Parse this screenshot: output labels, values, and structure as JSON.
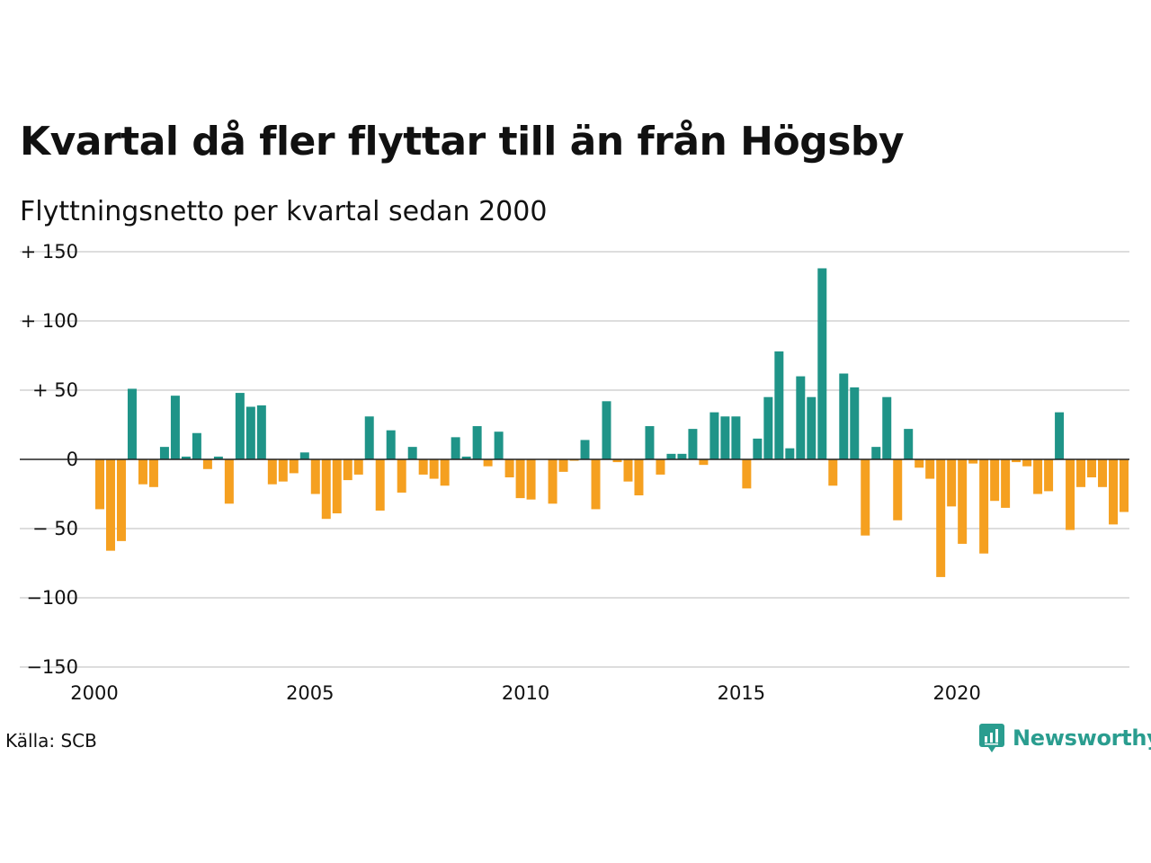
{
  "title": "Kvartal då fler flyttar till än från Högsby",
  "subtitle": "Flyttningsnetto per kvartal sedan 2000",
  "source": "Källa: SCB",
  "brand": {
    "name": "Newsworthy",
    "icon": "newsworthy-logo-icon"
  },
  "colors": {
    "positive": "#1f9488",
    "negative": "#f5a020",
    "grid": "#dddddd",
    "zero_line": "#222222"
  },
  "chart_data": {
    "type": "bar",
    "title": "Kvartal då fler flyttar till än från Högsby",
    "subtitle": "Flyttningsnetto per kvartal sedan 2000",
    "xlabel": "",
    "ylabel": "",
    "start": "2000 Q1",
    "quarters_per_year": 4,
    "ylim": [
      -150,
      150
    ],
    "xlim": [
      2000,
      2024
    ],
    "y_ticks": [
      150,
      100,
      50,
      0,
      -50,
      -100,
      -150
    ],
    "y_tick_labels": [
      "+ 150",
      "+ 100",
      "+  50",
      "0",
      "− 50",
      "−100",
      "−150"
    ],
    "x_ticks": [
      2000,
      2005,
      2010,
      2015,
      2020
    ],
    "x_tick_labels": [
      "2000",
      "2005",
      "2010",
      "2015",
      "2020"
    ],
    "grid": true,
    "legend": "none",
    "values": [
      -36,
      -66,
      -59,
      51,
      -18,
      -20,
      9,
      46,
      2,
      19,
      -7,
      2,
      -32,
      48,
      38,
      39,
      -18,
      -16,
      -10,
      5,
      -25,
      -43,
      -39,
      -15,
      -11,
      31,
      -37,
      21,
      -24,
      9,
      -11,
      -14,
      -19,
      16,
      2,
      24,
      -5,
      20,
      -13,
      -28,
      -29,
      0,
      -32,
      -9,
      -1,
      14,
      -36,
      42,
      -2,
      -16,
      -26,
      24,
      -11,
      4,
      4,
      22,
      -4,
      34,
      31,
      31,
      -21,
      15,
      45,
      78,
      8,
      60,
      45,
      138,
      -19,
      62,
      52,
      -55,
      9,
      45,
      -44,
      22,
      -6,
      -14,
      -85,
      -34,
      -61,
      -3,
      -68,
      -30,
      -35,
      -2,
      -5,
      -25,
      -23,
      34,
      -51,
      -20,
      -13,
      -20,
      -47,
      -38
    ]
  }
}
